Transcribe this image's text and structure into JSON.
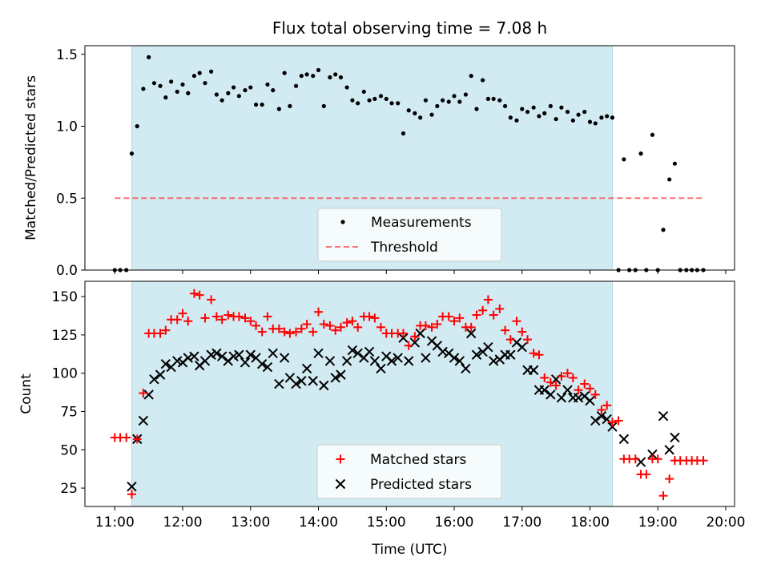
{
  "title": "Flux total observing time = 7.08 h",
  "colors": {
    "span": "#add8e6",
    "measurement": "#000000",
    "threshold": "#ff4d4d",
    "matched": "#ff0000",
    "predicted": "#000000"
  },
  "chart_data": [
    {
      "type": "scatter",
      "ylabel": "Matched/Predicted stars",
      "xlim": [
        10.56,
        20.13
      ],
      "ylim": [
        0.0,
        1.56
      ],
      "yticks": [
        0.0,
        0.5,
        1.0,
        1.5
      ],
      "ytick_labels": [
        "0.0",
        "0.5",
        "1.0",
        "1.5"
      ],
      "shaded_span": [
        11.25,
        18.33
      ],
      "threshold": {
        "value": 0.5,
        "x": [
          11.0,
          19.67
        ],
        "name": "Threshold"
      },
      "legend": {
        "position": "lower-center",
        "entries": [
          "Measurements",
          "Threshold"
        ]
      },
      "series": [
        {
          "name": "Measurements",
          "x": [
            11.0,
            11.08,
            11.17,
            11.25,
            11.33,
            11.42,
            11.5,
            11.58,
            11.67,
            11.75,
            11.83,
            11.92,
            12.0,
            12.08,
            12.17,
            12.25,
            12.33,
            12.42,
            12.5,
            12.58,
            12.67,
            12.75,
            12.83,
            12.92,
            13.0,
            13.08,
            13.17,
            13.25,
            13.33,
            13.42,
            13.5,
            13.58,
            13.67,
            13.75,
            13.83,
            13.92,
            14.0,
            14.08,
            14.17,
            14.25,
            14.33,
            14.42,
            14.5,
            14.58,
            14.67,
            14.75,
            14.83,
            14.92,
            15.0,
            15.08,
            15.17,
            15.25,
            15.33,
            15.42,
            15.5,
            15.58,
            15.67,
            15.75,
            15.83,
            15.92,
            16.0,
            16.08,
            16.17,
            16.25,
            16.33,
            16.42,
            16.5,
            16.58,
            16.67,
            16.75,
            16.83,
            16.92,
            17.0,
            17.08,
            17.17,
            17.25,
            17.33,
            17.42,
            17.5,
            17.58,
            17.67,
            17.75,
            17.83,
            17.92,
            18.0,
            18.08,
            18.17,
            18.25,
            18.33,
            18.42,
            18.5,
            18.58,
            18.67,
            18.75,
            18.83,
            18.92,
            19.0,
            19.08,
            19.17,
            19.25,
            19.33,
            19.42,
            19.5,
            19.58,
            19.67
          ],
          "y": [
            0.0,
            0.0,
            0.0,
            0.81,
            1.0,
            1.26,
            1.48,
            1.3,
            1.28,
            1.2,
            1.31,
            1.24,
            1.29,
            1.23,
            1.35,
            1.37,
            1.3,
            1.38,
            1.22,
            1.18,
            1.23,
            1.27,
            1.21,
            1.25,
            1.27,
            1.15,
            1.15,
            1.29,
            1.25,
            1.12,
            1.37,
            1.14,
            1.28,
            1.35,
            1.36,
            1.35,
            1.39,
            1.14,
            1.34,
            1.36,
            1.34,
            1.27,
            1.18,
            1.16,
            1.24,
            1.18,
            1.19,
            1.21,
            1.19,
            1.16,
            1.16,
            0.95,
            1.11,
            1.09,
            1.06,
            1.18,
            1.08,
            1.14,
            1.18,
            1.17,
            1.21,
            1.17,
            1.22,
            1.35,
            1.12,
            1.32,
            1.19,
            1.19,
            1.18,
            1.14,
            1.06,
            1.04,
            1.12,
            1.1,
            1.13,
            1.07,
            1.09,
            1.14,
            1.05,
            1.13,
            1.1,
            1.04,
            1.08,
            1.1,
            1.03,
            1.02,
            1.06,
            1.07,
            1.06,
            0.0,
            0.77,
            0.0,
            0.0,
            0.81,
            0.0,
            0.94,
            0.0,
            0.28,
            0.63,
            0.74,
            0.0,
            0.0,
            0.0,
            0.0,
            0.0
          ]
        }
      ]
    },
    {
      "type": "scatter",
      "xlabel": "Time (UTC)",
      "ylabel": "Count",
      "xlim": [
        10.56,
        20.13
      ],
      "ylim": [
        13,
        160
      ],
      "yticks": [
        25,
        50,
        75,
        100,
        125,
        150
      ],
      "ytick_labels": [
        "25",
        "50",
        "75",
        "100",
        "125",
        "150"
      ],
      "xticks": [
        11,
        12,
        13,
        14,
        15,
        16,
        17,
        18,
        19,
        20
      ],
      "xtick_labels": [
        "11:00",
        "12:00",
        "13:00",
        "14:00",
        "15:00",
        "16:00",
        "17:00",
        "18:00",
        "19:00",
        "20:00"
      ],
      "shaded_span": [
        11.25,
        18.33
      ],
      "legend": {
        "position": "lower-center",
        "entries": [
          "Matched stars",
          "Predicted stars"
        ]
      },
      "series": [
        {
          "name": "Matched stars",
          "marker": "plus",
          "x": [
            11.0,
            11.08,
            11.17,
            11.25,
            11.33,
            11.42,
            11.5,
            11.58,
            11.67,
            11.75,
            11.83,
            11.92,
            12.0,
            12.08,
            12.17,
            12.25,
            12.33,
            12.42,
            12.5,
            12.58,
            12.67,
            12.75,
            12.83,
            12.92,
            13.0,
            13.08,
            13.17,
            13.25,
            13.33,
            13.42,
            13.5,
            13.58,
            13.67,
            13.75,
            13.83,
            13.92,
            14.0,
            14.08,
            14.17,
            14.25,
            14.33,
            14.42,
            14.5,
            14.58,
            14.67,
            14.75,
            14.83,
            14.92,
            15.0,
            15.08,
            15.17,
            15.25,
            15.33,
            15.42,
            15.5,
            15.58,
            15.67,
            15.75,
            15.83,
            15.92,
            16.0,
            16.08,
            16.17,
            16.25,
            16.33,
            16.42,
            16.5,
            16.58,
            16.67,
            16.75,
            16.83,
            16.92,
            17.0,
            17.08,
            17.17,
            17.25,
            17.33,
            17.42,
            17.5,
            17.58,
            17.67,
            17.75,
            17.83,
            17.92,
            18.0,
            18.08,
            18.17,
            18.25,
            18.33,
            18.42,
            18.5,
            18.58,
            18.67,
            18.75,
            18.83,
            18.92,
            19.0,
            19.08,
            19.17,
            19.25,
            19.33,
            19.42,
            19.5,
            19.58,
            19.67
          ],
          "y": [
            58,
            58,
            58,
            21,
            57,
            87,
            126,
            126,
            126,
            128,
            135,
            135,
            139,
            134,
            152,
            151,
            136,
            148,
            137,
            135,
            138,
            137,
            137,
            136,
            134,
            131,
            127,
            137,
            129,
            129,
            127,
            126,
            127,
            129,
            132,
            127,
            140,
            132,
            131,
            128,
            130,
            133,
            134,
            130,
            137,
            137,
            136,
            130,
            126,
            126,
            126,
            126,
            118,
            124,
            131,
            131,
            130,
            132,
            137,
            137,
            134,
            136,
            130,
            130,
            138,
            141,
            148,
            138,
            142,
            128,
            122,
            134,
            127,
            122,
            113,
            112,
            97,
            94,
            92,
            98,
            100,
            97,
            89,
            93,
            90,
            86,
            76,
            79,
            68,
            69,
            44,
            44,
            44,
            34,
            34,
            44,
            44,
            20,
            31,
            43,
            43,
            43,
            43,
            43,
            43
          ]
        },
        {
          "name": "Predicted stars",
          "marker": "x",
          "x": [
            11.25,
            11.33,
            11.42,
            11.5,
            11.58,
            11.67,
            11.75,
            11.83,
            11.92,
            12.0,
            12.08,
            12.17,
            12.25,
            12.33,
            12.42,
            12.5,
            12.58,
            12.67,
            12.75,
            12.83,
            12.92,
            13.0,
            13.08,
            13.17,
            13.25,
            13.33,
            13.42,
            13.5,
            13.58,
            13.67,
            13.75,
            13.83,
            13.92,
            14.0,
            14.08,
            14.17,
            14.25,
            14.33,
            14.42,
            14.5,
            14.58,
            14.67,
            14.75,
            14.83,
            14.92,
            15.0,
            15.08,
            15.17,
            15.25,
            15.33,
            15.42,
            15.5,
            15.58,
            15.67,
            15.75,
            15.83,
            15.92,
            16.0,
            16.08,
            16.17,
            16.25,
            16.33,
            16.42,
            16.5,
            16.58,
            16.67,
            16.75,
            16.83,
            16.92,
            17.0,
            17.08,
            17.17,
            17.25,
            17.33,
            17.42,
            17.5,
            17.58,
            17.67,
            17.75,
            17.83,
            17.92,
            18.0,
            18.08,
            18.17,
            18.25,
            18.33,
            18.5,
            18.75,
            18.92,
            19.08,
            19.17,
            19.25
          ],
          "y": [
            26,
            57,
            69,
            86,
            96,
            99,
            106,
            104,
            108,
            107,
            110,
            111,
            105,
            108,
            112,
            113,
            111,
            108,
            111,
            112,
            107,
            112,
            110,
            106,
            104,
            113,
            93,
            110,
            97,
            93,
            95,
            103,
            95,
            113,
            92,
            108,
            97,
            99,
            108,
            115,
            113,
            110,
            114,
            108,
            103,
            111,
            108,
            110,
            123,
            108,
            120,
            126,
            110,
            121,
            118,
            114,
            113,
            110,
            108,
            103,
            126,
            112,
            114,
            117,
            108,
            109,
            112,
            112,
            120,
            117,
            102,
            102,
            89,
            89,
            86,
            96,
            84,
            89,
            84,
            84,
            85,
            82,
            69,
            72,
            70,
            65,
            57,
            42,
            47,
            72,
            50,
            58
          ]
        }
      ]
    }
  ]
}
